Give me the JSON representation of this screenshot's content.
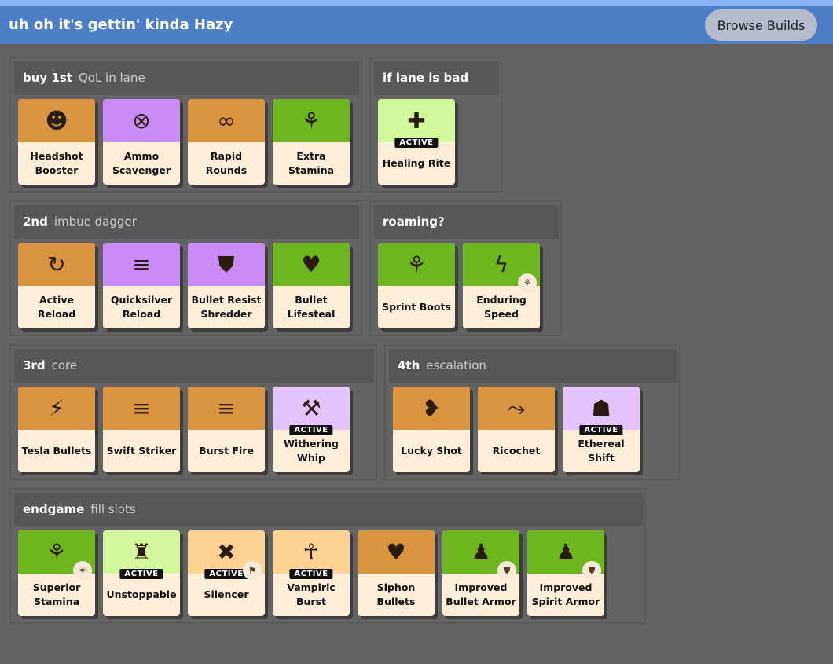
{
  "header": {
    "title": "uh oh it's gettin' kinda Hazy",
    "browse_label": "Browse Builds"
  },
  "colors": {
    "orange": "#da9440",
    "purple": "#c98cf7",
    "green": "#6db61f",
    "light_green": "#d3f89b",
    "light_orange": "#fdd292",
    "light_purple": "#e4c4fb"
  },
  "sections": [
    {
      "name": "buy 1st",
      "note": "QoL in lane",
      "items": [
        {
          "label": "Headshot Booster",
          "color": "orange",
          "icon": "head-icon"
        },
        {
          "label": "Ammo Scavenger",
          "color": "purple",
          "icon": "crosshair-icon"
        },
        {
          "label": "Rapid Rounds",
          "color": "orange",
          "icon": "swirl-icon"
        },
        {
          "label": "Extra Stamina",
          "color": "green",
          "icon": "boot-icon"
        }
      ]
    },
    {
      "name": "if lane is bad",
      "note": "",
      "items": [
        {
          "label": "Healing Rite",
          "color": "light_green",
          "icon": "heal-icon",
          "active": "ACTIVE"
        }
      ]
    },
    {
      "name": "2nd",
      "note": "imbue dagger",
      "items": [
        {
          "label": "Active Reload",
          "color": "orange",
          "icon": "reload-icon"
        },
        {
          "label": "Quicksilver Reload",
          "color": "purple",
          "icon": "bullets-icon"
        },
        {
          "label": "Bullet Resist Shredder",
          "color": "purple",
          "icon": "shield-icon"
        },
        {
          "label": "Bullet Lifesteal",
          "color": "green",
          "icon": "heart-icon"
        }
      ]
    },
    {
      "name": "roaming?",
      "note": "",
      "items": [
        {
          "label": "Sprint Boots",
          "color": "green",
          "icon": "boot-icon"
        },
        {
          "label": "Enduring Speed",
          "color": "green",
          "icon": "wing-icon",
          "mini": "boot-icon"
        }
      ]
    },
    {
      "name": "3rd",
      "note": "core",
      "items": [
        {
          "label": "Tesla Bullets",
          "color": "orange",
          "icon": "lightning-bullet-icon"
        },
        {
          "label": "Swift Striker",
          "color": "orange",
          "icon": "bullets-icon"
        },
        {
          "label": "Burst Fire",
          "color": "orange",
          "icon": "bullets-icon"
        },
        {
          "label": "Withering Whip",
          "color": "light_purple",
          "icon": "whip-icon",
          "active": "ACTIVE"
        }
      ]
    },
    {
      "name": "4th",
      "note": "escalation",
      "items": [
        {
          "label": "Lucky Shot",
          "color": "orange",
          "icon": "broken-heart-icon"
        },
        {
          "label": "Ricochet",
          "color": "orange",
          "icon": "ricochet-icon"
        },
        {
          "label": "Ethereal Shift",
          "color": "light_purple",
          "icon": "ghost-icon",
          "active": "ACTIVE"
        }
      ]
    },
    {
      "name": "endgame",
      "note": "fill slots",
      "items": [
        {
          "label": "Superior Stamina",
          "color": "green",
          "icon": "boot-icon",
          "mini": "stamina-icon"
        },
        {
          "label": "Unstoppable",
          "color": "light_green",
          "icon": "figure-icon",
          "active": "ACTIVE"
        },
        {
          "label": "Silencer",
          "color": "light_orange",
          "icon": "silencer-icon",
          "active": "ACTIVE",
          "mini": "gun-icon"
        },
        {
          "label": "Vampiric Burst",
          "color": "light_orange",
          "icon": "vampire-icon",
          "active": "ACTIVE"
        },
        {
          "label": "Siphon Bullets",
          "color": "orange",
          "icon": "heart-icon"
        },
        {
          "label": "Improved Bullet Armor",
          "color": "green",
          "icon": "armor-icon",
          "mini": "shield-icon"
        },
        {
          "label": "Improved Spirit Armor",
          "color": "green",
          "icon": "armor-icon",
          "mini": "shield-icon"
        }
      ]
    }
  ]
}
